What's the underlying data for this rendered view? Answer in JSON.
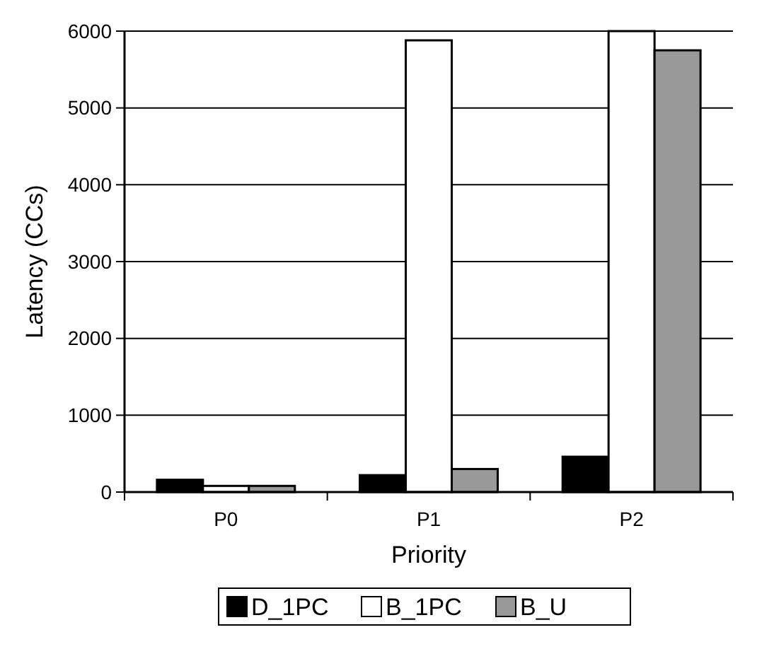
{
  "chart_data": {
    "type": "bar",
    "xlabel": "Priority",
    "ylabel": "Latency (CCs)",
    "categories": [
      "P0",
      "P1",
      "P2"
    ],
    "series": [
      {
        "name": "D_1PC",
        "color": "#000000",
        "values": [
          160,
          220,
          460
        ]
      },
      {
        "name": "B_1PC",
        "color": "#ffffff",
        "values": [
          80,
          5880,
          6000
        ]
      },
      {
        "name": "B_U",
        "color": "#999999",
        "values": [
          80,
          300,
          5750
        ]
      }
    ],
    "ylim": [
      0,
      6000
    ],
    "yticks": [
      0,
      1000,
      2000,
      3000,
      4000,
      5000,
      6000
    ],
    "grid": "y",
    "legend": "bottom"
  }
}
